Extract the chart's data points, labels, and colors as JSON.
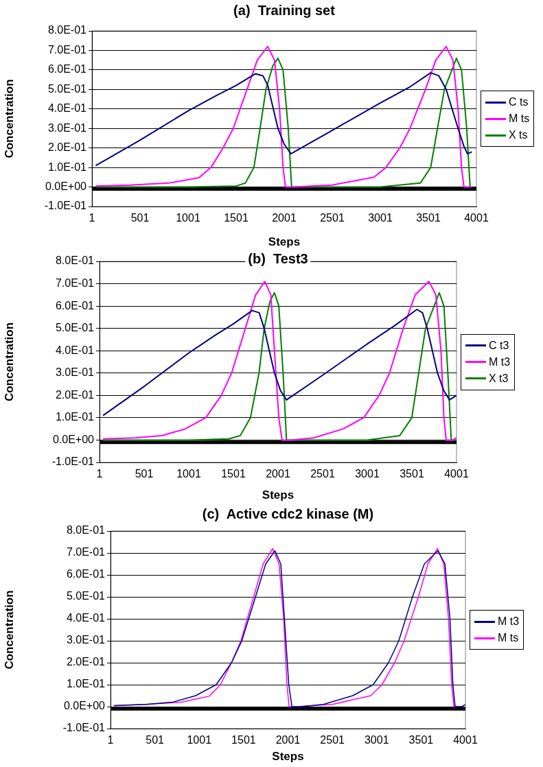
{
  "chart_data": [
    {
      "type": "line",
      "title": "(a)  Training set",
      "xlabel": "Steps",
      "ylabel": "Concentration",
      "xlim": [
        1,
        4001
      ],
      "xticks": [
        1,
        501,
        1001,
        1501,
        2001,
        2501,
        3001,
        3501,
        4001
      ],
      "ylim": [
        -0.1,
        0.8
      ],
      "yticks": [
        {
          "value": -0.1,
          "label": "-1.0E-01"
        },
        {
          "value": 0,
          "label": "0.0E+00"
        },
        {
          "value": 0.1,
          "label": "1.0E-01"
        },
        {
          "value": 0.2,
          "label": "2.0E-01"
        },
        {
          "value": 0.3,
          "label": "3.0E-01"
        },
        {
          "value": 0.4,
          "label": "4.0E-01"
        },
        {
          "value": 0.5,
          "label": "5.0E-01"
        },
        {
          "value": 0.6,
          "label": "6.0E-01"
        },
        {
          "value": 0.7,
          "label": "7.0E-01"
        },
        {
          "value": 0.8,
          "label": "8.0E-01"
        }
      ],
      "grid": "y",
      "legend": "right",
      "marker": "none",
      "line_style": "solid",
      "ref_lines": [
        {
          "axis": "y",
          "value": -0.01,
          "label": null,
          "color": "#000000"
        }
      ],
      "series": [
        {
          "name": "C ts",
          "color": "#000080",
          "x": [
            40,
            500,
            1001,
            1300,
            1500,
            1700,
            1780,
            1830,
            1936,
            2000,
            2071,
            2500,
            3000,
            3300,
            3525,
            3610,
            3686,
            3810,
            3870,
            3907,
            3953
          ],
          "values": [
            0.11,
            0.24,
            0.39,
            0.47,
            0.52,
            0.58,
            0.57,
            0.52,
            0.3,
            0.22,
            0.17,
            0.29,
            0.43,
            0.51,
            0.585,
            0.57,
            0.5,
            0.3,
            0.21,
            0.17,
            0.18
          ]
        },
        {
          "name": "M ts",
          "color": "#ff00ff",
          "x": [
            40,
            400,
            800,
            1114,
            1239,
            1364,
            1471,
            1614,
            1721,
            1829,
            1900,
            1953,
            1989,
            2014,
            2100,
            2500,
            2935,
            3060,
            3203,
            3310,
            3471,
            3578,
            3686,
            3757,
            3810,
            3846,
            3871,
            3950
          ],
          "values": [
            0.005,
            0.01,
            0.02,
            0.048,
            0.1,
            0.2,
            0.3,
            0.5,
            0.65,
            0.72,
            0.65,
            0.4,
            0.1,
            0,
            0,
            0.01,
            0.05,
            0.1,
            0.2,
            0.3,
            0.5,
            0.65,
            0.72,
            0.65,
            0.4,
            0.1,
            0,
            0
          ]
        },
        {
          "name": "X ts",
          "color": "#008000",
          "x": [
            40,
            1000,
            1500,
            1596,
            1686,
            1750,
            1811,
            1882,
            1936,
            1989,
            2043,
            2078,
            2500,
            3000,
            3418,
            3525,
            3596,
            3668,
            3793,
            3846,
            3900,
            3935
          ],
          "values": [
            0,
            0,
            0.005,
            0.02,
            0.1,
            0.3,
            0.5,
            0.62,
            0.66,
            0.6,
            0.3,
            0,
            0,
            0,
            0.02,
            0.1,
            0.3,
            0.5,
            0.66,
            0.6,
            0.3,
            0
          ]
        }
      ]
    },
    {
      "type": "line",
      "title": "(b)  Test3",
      "xlabel": "Steps",
      "ylabel": "Concentration",
      "xlim": [
        1,
        4001
      ],
      "xticks": [
        1,
        501,
        1001,
        1501,
        2001,
        2501,
        3001,
        3501,
        4001
      ],
      "ylim": [
        -0.1,
        0.8
      ],
      "yticks": [
        {
          "value": -0.1,
          "label": "-1.0E-01"
        },
        {
          "value": 0,
          "label": "0.0E+00"
        },
        {
          "value": 0.1,
          "label": "1.0E-01"
        },
        {
          "value": 0.2,
          "label": "2.0E-01"
        },
        {
          "value": 0.3,
          "label": "3.0E-01"
        },
        {
          "value": 0.4,
          "label": "4.0E-01"
        },
        {
          "value": 0.5,
          "label": "5.0E-01"
        },
        {
          "value": 0.6,
          "label": "6.0E-01"
        },
        {
          "value": 0.7,
          "label": "7.0E-01"
        },
        {
          "value": 0.8,
          "label": "8.0E-01"
        }
      ],
      "grid": "y",
      "legend": "right",
      "marker": "none",
      "line_style": "solid",
      "ref_lines": [
        {
          "axis": "y",
          "value": -0.01,
          "label": null,
          "color": "#000000"
        }
      ],
      "series": [
        {
          "name": "C t3",
          "color": "#000080",
          "x": [
            40,
            500,
            1001,
            1300,
            1500,
            1711,
            1790,
            1846,
            1961,
            2030,
            2096,
            2500,
            3000,
            3300,
            3558,
            3620,
            3673,
            3788,
            3860,
            3923,
            4000
          ],
          "values": [
            0.11,
            0.24,
            0.39,
            0.47,
            0.52,
            0.58,
            0.57,
            0.5,
            0.3,
            0.22,
            0.18,
            0.29,
            0.43,
            0.51,
            0.585,
            0.57,
            0.5,
            0.3,
            0.22,
            0.18,
            0.2
          ]
        },
        {
          "name": "M t3",
          "color": "#ff00ff",
          "x": [
            40,
            400,
            700,
            961,
            1192,
            1365,
            1481,
            1635,
            1750,
            1854,
            1920,
            1961,
            2010,
            2046,
            2150,
            2400,
            2731,
            2961,
            3134,
            3250,
            3404,
            3538,
            3692,
            3770,
            3827,
            3860,
            3885,
            3960,
            4000
          ],
          "values": [
            0.005,
            0.01,
            0.02,
            0.05,
            0.1,
            0.2,
            0.3,
            0.5,
            0.65,
            0.71,
            0.65,
            0.4,
            0.1,
            0,
            0,
            0.01,
            0.05,
            0.1,
            0.2,
            0.3,
            0.5,
            0.65,
            0.71,
            0.65,
            0.4,
            0.1,
            0,
            0,
            0.01
          ]
        },
        {
          "name": "X t3",
          "color": "#008000",
          "x": [
            40,
            1000,
            1450,
            1577,
            1692,
            1788,
            1846,
            1910,
            1961,
            2010,
            2058,
            2096,
            2500,
            3000,
            3365,
            3500,
            3577,
            3654,
            3808,
            3860,
            3904,
            3942,
            4000
          ],
          "values": [
            0,
            0,
            0.005,
            0.02,
            0.1,
            0.3,
            0.5,
            0.62,
            0.66,
            0.6,
            0.3,
            0,
            0,
            0,
            0.02,
            0.1,
            0.3,
            0.5,
            0.66,
            0.6,
            0.3,
            0,
            0
          ]
        }
      ]
    },
    {
      "type": "line",
      "title": "(c)  Active cdc2 kinase (M)",
      "xlabel": "Steps",
      "ylabel": "Concentration",
      "xlim": [
        1,
        4001
      ],
      "xticks": [
        1,
        501,
        1001,
        1501,
        2001,
        2501,
        3001,
        3501,
        4001
      ],
      "ylim": [
        -0.1,
        0.8
      ],
      "yticks": [
        {
          "value": -0.1,
          "label": "-1.0E-01"
        },
        {
          "value": 0,
          "label": "0.0E+00"
        },
        {
          "value": 0.1,
          "label": "1.0E-01"
        },
        {
          "value": 0.2,
          "label": "2.0E-01"
        },
        {
          "value": 0.3,
          "label": "3.0E-01"
        },
        {
          "value": 0.4,
          "label": "4.0E-01"
        },
        {
          "value": 0.5,
          "label": "5.0E-01"
        },
        {
          "value": 0.6,
          "label": "6.0E-01"
        },
        {
          "value": 0.7,
          "label": "7.0E-01"
        },
        {
          "value": 0.8,
          "label": "8.0E-01"
        }
      ],
      "grid": "y",
      "legend": "right",
      "marker": "none",
      "line_style": "solid",
      "ref_lines": [
        {
          "axis": "y",
          "value": -0.01,
          "label": null,
          "color": "#000000"
        }
      ],
      "series": [
        {
          "name": "M t3",
          "color": "#000080",
          "x": [
            40,
            400,
            700,
            961,
            1192,
            1365,
            1481,
            1635,
            1750,
            1854,
            1920,
            1961,
            2010,
            2046,
            2150,
            2400,
            2731,
            2961,
            3134,
            3250,
            3404,
            3538,
            3692,
            3770,
            3827,
            3860,
            3885,
            3960,
            4000
          ],
          "values": [
            0.005,
            0.01,
            0.02,
            0.05,
            0.1,
            0.2,
            0.3,
            0.5,
            0.65,
            0.71,
            0.65,
            0.4,
            0.1,
            0,
            0,
            0.01,
            0.05,
            0.1,
            0.2,
            0.3,
            0.5,
            0.65,
            0.71,
            0.65,
            0.4,
            0.1,
            0,
            0,
            0.01
          ]
        },
        {
          "name": "M ts",
          "color": "#ff00ff",
          "x": [
            40,
            400,
            800,
            1114,
            1239,
            1364,
            1471,
            1614,
            1721,
            1829,
            1900,
            1953,
            1989,
            2014,
            2100,
            2500,
            2935,
            3060,
            3203,
            3310,
            3471,
            3578,
            3686,
            3757,
            3810,
            3846,
            3871,
            3950
          ],
          "values": [
            0.005,
            0.01,
            0.02,
            0.048,
            0.1,
            0.2,
            0.3,
            0.5,
            0.65,
            0.72,
            0.65,
            0.4,
            0.1,
            0,
            0,
            0.01,
            0.05,
            0.1,
            0.2,
            0.3,
            0.5,
            0.65,
            0.72,
            0.65,
            0.4,
            0.1,
            0,
            0
          ]
        }
      ]
    }
  ]
}
